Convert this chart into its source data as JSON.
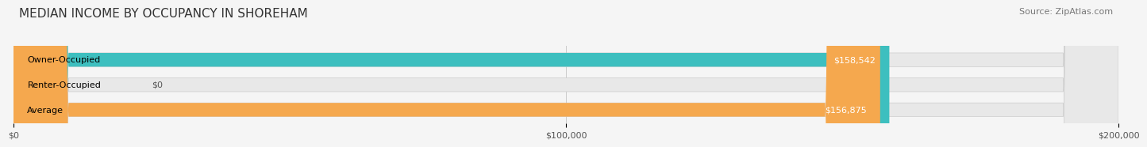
{
  "title": "MEDIAN INCOME BY OCCUPANCY IN SHOREHAM",
  "source": "Source: ZipAtlas.com",
  "categories": [
    "Owner-Occupied",
    "Renter-Occupied",
    "Average"
  ],
  "values": [
    158542,
    0,
    156875
  ],
  "bar_colors": [
    "#3dbfbf",
    "#c8a8d8",
    "#f5a84e"
  ],
  "bar_labels": [
    "$158,542",
    "$0",
    "$156,875"
  ],
  "xlim": [
    0,
    200000
  ],
  "xtick_labels": [
    "$0",
    "$100,000",
    "$200,000"
  ],
  "background_color": "#f5f5f5",
  "bar_background_color": "#e8e8e8",
  "title_fontsize": 11,
  "source_fontsize": 8,
  "label_fontsize": 8,
  "tick_fontsize": 8
}
